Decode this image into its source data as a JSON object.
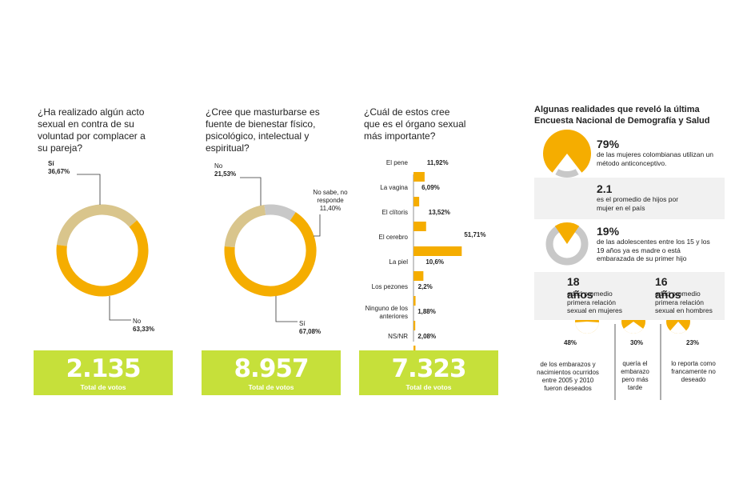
{
  "colors": {
    "orange": "#f5ad00",
    "tan": "#d9c58c",
    "gray": "#c8c8c8",
    "green": "#c6e03a",
    "band": "#f1f1f1"
  },
  "panel1": {
    "question": "¿Ha realizado algún acto sexual en contra de su voluntad por complacer a su pareja?",
    "total": "2.135",
    "total_label": "Total de votos"
  },
  "panel2": {
    "question": "¿Cree que masturbarse es fuente de bienestar físico, psicológico, intelectual y espiritual?",
    "total": "8.957",
    "total_label": "Total de votos"
  },
  "panel3": {
    "question": "¿Cuál de estos cree que es el órgano sexual más importante?",
    "total": "7.323",
    "total_label": "Total de votos"
  },
  "chart_data": [
    {
      "type": "pie",
      "title": "¿Ha realizado algún acto sexual en contra de su voluntad por complacer a su pareja?",
      "series": [
        {
          "name": "Sí",
          "value": 36.67,
          "label": "36,67%",
          "color": "#d9c58c"
        },
        {
          "name": "No",
          "value": 63.33,
          "label": "63,33%",
          "color": "#f5ad00"
        }
      ]
    },
    {
      "type": "pie",
      "title": "¿Cree que masturbarse es fuente de bienestar físico, psicológico, intelectual y espiritual?",
      "series": [
        {
          "name": "No",
          "value": 21.53,
          "label": "21,53%",
          "color": "#d9c58c"
        },
        {
          "name": "No sabe, no responde",
          "value": 11.4,
          "label": "11,40%",
          "color": "#c8c8c8"
        },
        {
          "name": "Sí",
          "value": 67.08,
          "label": "67,08%",
          "color": "#f5ad00"
        }
      ]
    },
    {
      "type": "bar",
      "title": "¿Cuál de estos cree que es el órgano sexual más importante?",
      "categories": [
        "El pene",
        "La vagina",
        "El clítoris",
        "El cerebro",
        "La piel",
        "Los pezones",
        "Ninguno de los anteriores",
        "NS/NR"
      ],
      "values": [
        11.92,
        6.09,
        13.52,
        51.71,
        10.6,
        2.2,
        1.88,
        2.08
      ],
      "value_labels": [
        "11,92%",
        "6,09%",
        "13,52%",
        "51,71%",
        "10,6%",
        "2,2%",
        "1,88%",
        "2,08%"
      ]
    },
    {
      "type": "pie",
      "title": "Algunas realidades que reveló la última Encuesta Nacional de Demografía y Salud",
      "series": [
        {
          "name": "de los embarazos y nacimientos ocurridos entre 2005 y 2010 fueron deseados",
          "value": 48,
          "label": "48%"
        },
        {
          "name": "quería el embarazo pero más tarde",
          "value": 30,
          "label": "30%"
        },
        {
          "name": "lo reporta como francamente no deseado",
          "value": 23,
          "label": "23%"
        }
      ]
    }
  ],
  "facts": {
    "title": "Algunas realidades que reveló la última Encuesta Nacional de Demografía y Salud",
    "contraception": {
      "big": "79%",
      "text": "de las mujeres colombianas utilizan un método anticonceptivo.",
      "value": 79
    },
    "children": {
      "big": "2.1",
      "text": "es el promedio de hijos por mujer en el país"
    },
    "teen": {
      "big": "19%",
      "text": "de las adolescentes entre los 15 y los 19 años ya es madre o está embarazada de su primer hijo",
      "value": 19
    },
    "women_age": {
      "big": "18 años",
      "text": "edad promedio primera relación sexual en mujeres"
    },
    "men_age": {
      "big": "16 años",
      "text": "edad promedio primera relación sexual en hombres"
    }
  }
}
